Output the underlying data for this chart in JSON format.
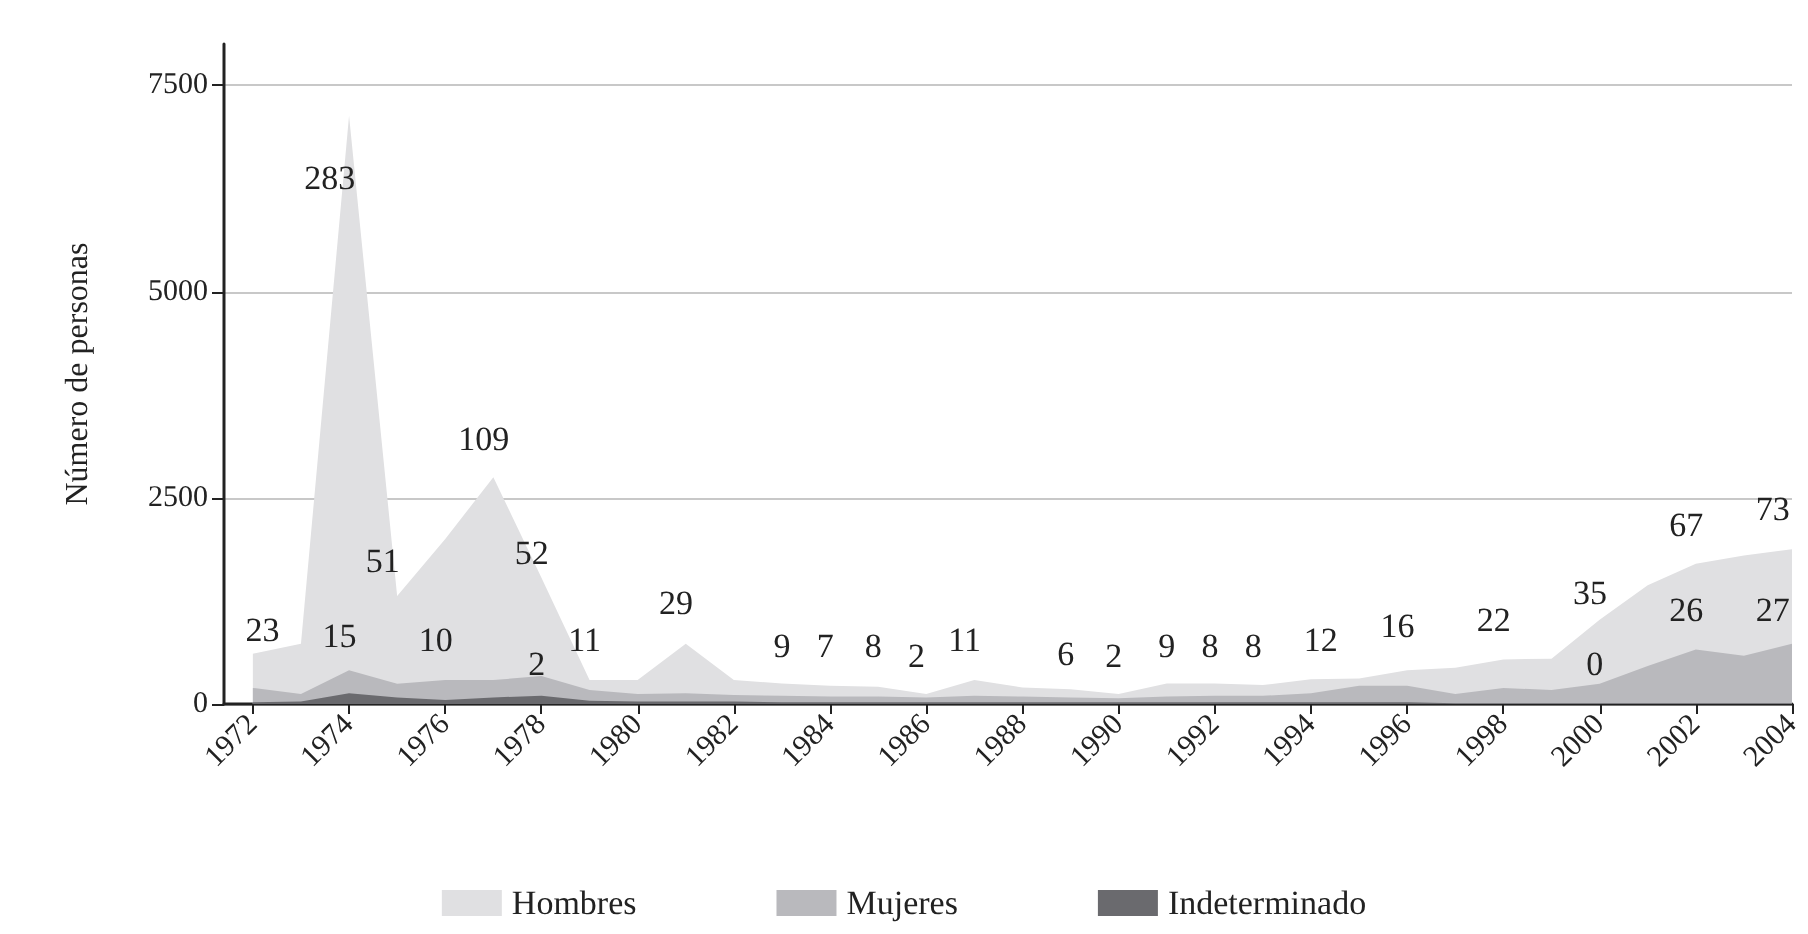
{
  "chart_data": {
    "type": "area",
    "stacked": true,
    "ylabel": "Número de personas",
    "x": [
      1972,
      1973,
      1974,
      1975,
      1976,
      1977,
      1978,
      1979,
      1980,
      1981,
      1982,
      1983,
      1984,
      1985,
      1986,
      1987,
      1988,
      1989,
      1990,
      1991,
      1992,
      1993,
      1994,
      1995,
      1996,
      1997,
      1998,
      1999,
      2000,
      2001,
      2002,
      2003,
      2004
    ],
    "series": [
      {
        "name": "Indeterminado",
        "color": "#6a6a6e",
        "values": [
          20,
          30,
          130,
          80,
          50,
          80,
          100,
          40,
          30,
          30,
          30,
          20,
          20,
          20,
          20,
          20,
          20,
          20,
          20,
          20,
          20,
          20,
          20,
          20,
          20,
          10,
          10,
          10,
          10,
          10,
          10,
          10,
          10
        ]
      },
      {
        "name": "Mujeres",
        "color": "#b9b9bd",
        "values": [
          175,
          90,
          280,
          165,
          240,
          210,
          240,
          130,
          90,
          100,
          80,
          80,
          70,
          70,
          60,
          80,
          70,
          60,
          50,
          70,
          80,
          80,
          110,
          200,
          200,
          110,
          185,
          160,
          235,
          450,
          650,
          575,
          720
        ]
      },
      {
        "name": "Hombres",
        "color": "#e0e0e2",
        "values": [
          415,
          610,
          6720,
          1065,
          1710,
          2460,
          1190,
          120,
          170,
          600,
          180,
          150,
          130,
          120,
          40,
          190,
          110,
          100,
          50,
          160,
          150,
          130,
          170,
          90,
          190,
          320,
          345,
          380,
          775,
          980,
          1040,
          1215,
          1145
        ]
      }
    ],
    "xlim": [
      1971.4,
      2004
    ],
    "xticks": [
      1972,
      1974,
      1976,
      1978,
      1980,
      1982,
      1984,
      1986,
      1988,
      1990,
      1992,
      1994,
      1996,
      1998,
      2000,
      2002,
      2004
    ],
    "ylim": [
      0,
      8000
    ],
    "yticks": [
      0,
      2500,
      5000,
      7500
    ],
    "grid": "y",
    "legend": "bottom",
    "marker": "none",
    "annotations": [
      "23",
      "283",
      "15",
      "51",
      "10",
      "109",
      "52",
      "2",
      "11",
      "29",
      "9",
      "7",
      "8",
      "2",
      "11",
      "6",
      "2",
      "9",
      "8",
      "8",
      "12",
      "16",
      "22",
      "35",
      "0",
      "67",
      "26",
      "73",
      "27"
    ]
  }
}
